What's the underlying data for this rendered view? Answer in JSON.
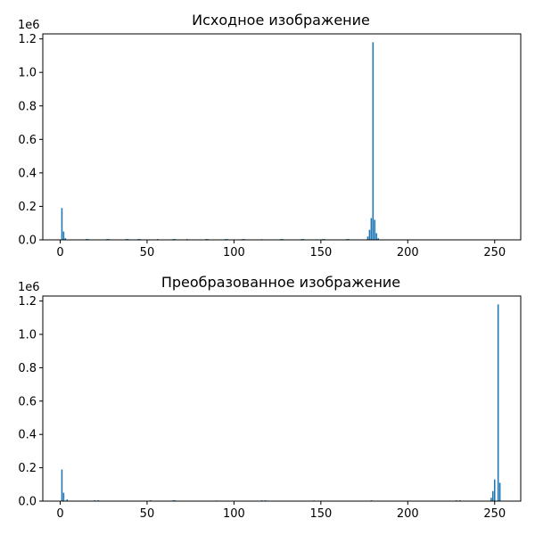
{
  "chart_data": [
    {
      "type": "bar",
      "title": "Исходное изображение",
      "xlabel": "",
      "ylabel": "",
      "xlim": [
        -10,
        265
      ],
      "ylim": [
        0,
        1.23
      ],
      "y_scale_label": "1e6",
      "x_ticks": [
        "0",
        "50",
        "100",
        "150",
        "200",
        "250"
      ],
      "y_ticks": [
        "0.0",
        "0.2",
        "0.4",
        "0.6",
        "0.8",
        "1.0",
        "1.2"
      ],
      "color": "#1f77b4",
      "bars": [
        {
          "x": 1,
          "y": 0.19
        },
        {
          "x": 2,
          "y": 0.05
        },
        {
          "x": 3,
          "y": 0.01
        },
        {
          "x": 15,
          "y": 0.005
        },
        {
          "x": 16,
          "y": 0.005
        },
        {
          "x": 27,
          "y": 0.005
        },
        {
          "x": 28,
          "y": 0.005
        },
        {
          "x": 38,
          "y": 0.005
        },
        {
          "x": 39,
          "y": 0.005
        },
        {
          "x": 45,
          "y": 0.005
        },
        {
          "x": 46,
          "y": 0.005
        },
        {
          "x": 56,
          "y": 0.005
        },
        {
          "x": 65,
          "y": 0.005
        },
        {
          "x": 66,
          "y": 0.005
        },
        {
          "x": 73,
          "y": 0.005
        },
        {
          "x": 84,
          "y": 0.005
        },
        {
          "x": 85,
          "y": 0.005
        },
        {
          "x": 95,
          "y": 0.005
        },
        {
          "x": 96,
          "y": 0.005
        },
        {
          "x": 105,
          "y": 0.005
        },
        {
          "x": 106,
          "y": 0.005
        },
        {
          "x": 116,
          "y": 0.004
        },
        {
          "x": 127,
          "y": 0.005
        },
        {
          "x": 128,
          "y": 0.005
        },
        {
          "x": 139,
          "y": 0.005
        },
        {
          "x": 140,
          "y": 0.005
        },
        {
          "x": 151,
          "y": 0.005
        },
        {
          "x": 152,
          "y": 0.005
        },
        {
          "x": 165,
          "y": 0.005
        },
        {
          "x": 166,
          "y": 0.005
        },
        {
          "x": 177,
          "y": 0.02
        },
        {
          "x": 178,
          "y": 0.06
        },
        {
          "x": 179,
          "y": 0.13
        },
        {
          "x": 180,
          "y": 1.18
        },
        {
          "x": 181,
          "y": 0.12
        },
        {
          "x": 182,
          "y": 0.04
        },
        {
          "x": 183,
          "y": 0.01
        }
      ]
    },
    {
      "type": "bar",
      "title": "Преобразованное изображение",
      "xlabel": "",
      "ylabel": "",
      "xlim": [
        -10,
        265
      ],
      "ylim": [
        0,
        1.23
      ],
      "y_scale_label": "1e6",
      "x_ticks": [
        "0",
        "50",
        "100",
        "150",
        "200",
        "250"
      ],
      "y_ticks": [
        "0.0",
        "0.2",
        "0.4",
        "0.6",
        "0.8",
        "1.0",
        "1.2"
      ],
      "color": "#1f77b4",
      "bars": [
        {
          "x": 1,
          "y": 0.19
        },
        {
          "x": 2,
          "y": 0.05
        },
        {
          "x": 4,
          "y": 0.01
        },
        {
          "x": 20,
          "y": 0.005
        },
        {
          "x": 22,
          "y": 0.005
        },
        {
          "x": 52,
          "y": 0.005
        },
        {
          "x": 65,
          "y": 0.005
        },
        {
          "x": 66,
          "y": 0.005
        },
        {
          "x": 90,
          "y": 0.004
        },
        {
          "x": 116,
          "y": 0.005
        },
        {
          "x": 118,
          "y": 0.005
        },
        {
          "x": 146,
          "y": 0.004
        },
        {
          "x": 179,
          "y": 0.005
        },
        {
          "x": 228,
          "y": 0.005
        },
        {
          "x": 230,
          "y": 0.005
        },
        {
          "x": 248,
          "y": 0.02
        },
        {
          "x": 249,
          "y": 0.06
        },
        {
          "x": 250,
          "y": 0.13
        },
        {
          "x": 252,
          "y": 1.18
        },
        {
          "x": 253,
          "y": 0.11
        }
      ]
    }
  ]
}
